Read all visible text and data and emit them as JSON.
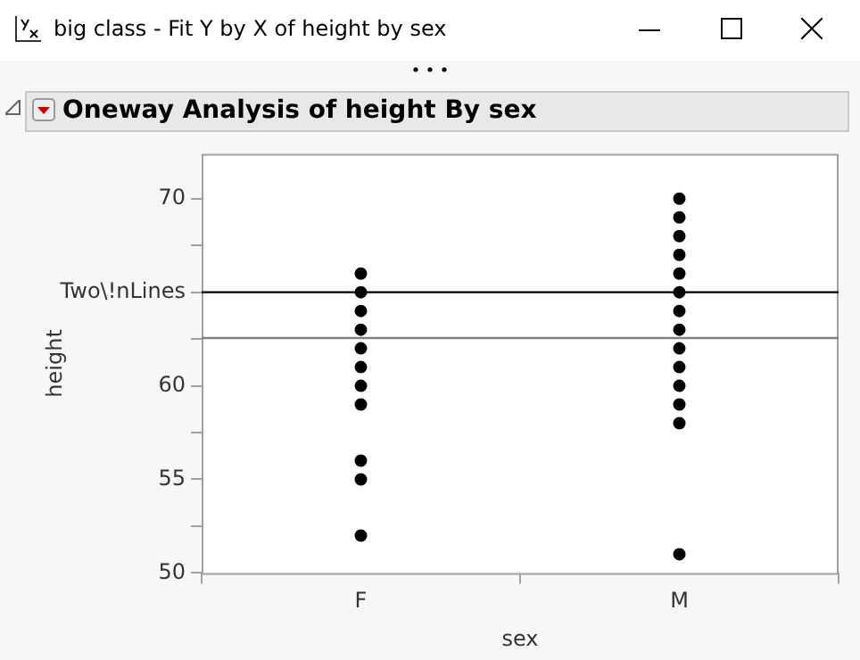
{
  "chart_data": {
    "type": "scatter",
    "title": "Oneway Analysis of height By sex",
    "annotations": [
      "big class - Fit Y by X of height by sex"
    ],
    "xlabel": "sex",
    "ylabel": "height",
    "categories": [
      "F",
      "M"
    ],
    "series": [
      {
        "color": "#000000",
        "x": [
          "F",
          "F",
          "F",
          "F",
          "F",
          "F",
          "F",
          "F",
          "F",
          "F",
          "F"
        ],
        "values": [
          66,
          65,
          64,
          63,
          62,
          61,
          60,
          59,
          56,
          55,
          52
        ]
      },
      {
        "color": "#000000",
        "x": [
          "M",
          "M",
          "M",
          "M",
          "M",
          "M",
          "M",
          "M",
          "M",
          "M",
          "M",
          "M",
          "M",
          "M"
        ],
        "values": [
          70,
          69,
          68,
          67,
          66,
          65,
          64,
          63,
          62,
          61,
          60,
          59,
          58,
          51
        ]
      }
    ],
    "ylim": [
      50,
      72.4
    ],
    "yticks": [
      50,
      {
        "value": 52.5,
        "label": null
      },
      55,
      {
        "value": 57.5,
        "label": null
      },
      60,
      {
        "value": 62.5,
        "label": null
      },
      {
        "value": 65,
        "label": "Two\\!nLines"
      },
      {
        "value": 67.5,
        "label": null
      },
      70
    ],
    "ref_lines": [
      {
        "axis": "y",
        "value": 65,
        "color": "#000000"
      },
      {
        "axis": "y",
        "value": 62.55,
        "color": "#808080"
      }
    ],
    "grid": false,
    "legend": false,
    "marker": "circle"
  }
}
